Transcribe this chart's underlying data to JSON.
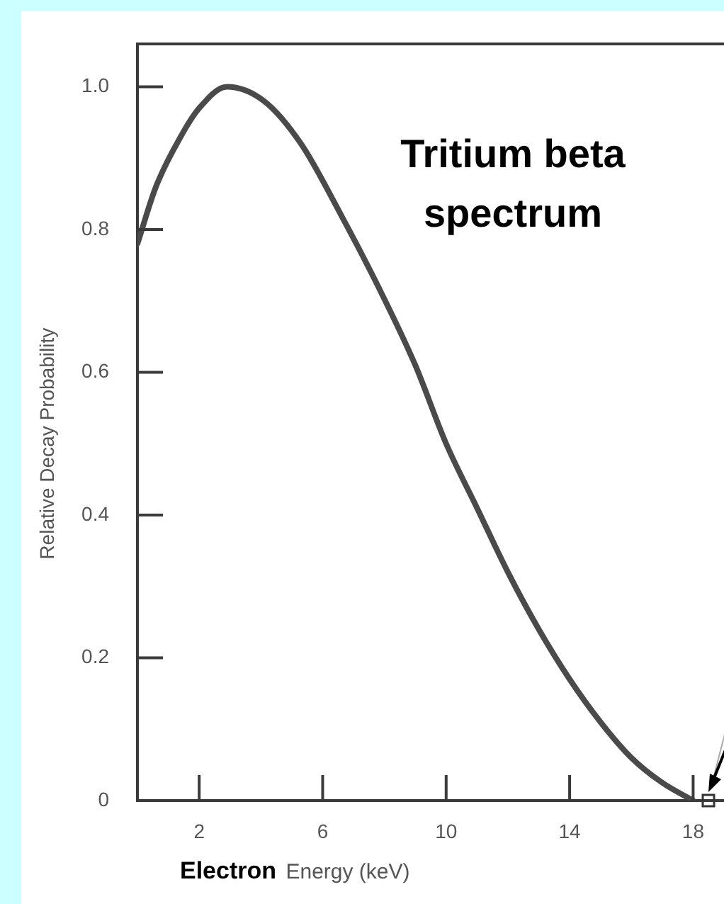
{
  "chart_data": {
    "type": "line",
    "title": "Tritium beta spectrum",
    "xlabel": "Electron Energy (keV)",
    "ylabel": "Relative Decay Probability",
    "x": [
      0,
      0.6,
      1.4,
      2,
      2.9,
      4.1,
      5.3,
      6.6,
      7.8,
      9,
      10,
      11,
      12,
      13,
      14,
      15,
      16,
      17,
      18
    ],
    "series": [
      {
        "color": "#4a4a4a",
        "values": [
          0.78,
          0.86,
          0.93,
          0.97,
          1.0,
          0.98,
          0.92,
          0.82,
          0.72,
          0.61,
          0.5,
          0.41,
          0.32,
          0.24,
          0.17,
          0.11,
          0.06,
          0.025,
          0
        ]
      }
    ],
    "xlim": [
      0,
      19
    ],
    "ylim": [
      0,
      1.06
    ],
    "xticks": [
      2,
      6,
      10,
      14,
      18
    ],
    "yticks": [
      0,
      {
        "value": 0.2,
        "label": "0.2"
      },
      {
        "value": 0.4,
        "label": "0.4"
      },
      {
        "value": 0.6,
        "label": "0.6"
      },
      {
        "value": 0.8,
        "label": "0.8"
      },
      {
        "value": 1,
        "label": "1.0"
      }
    ],
    "grid": false,
    "legend": false,
    "marker": "none",
    "line_style": "solid"
  }
}
